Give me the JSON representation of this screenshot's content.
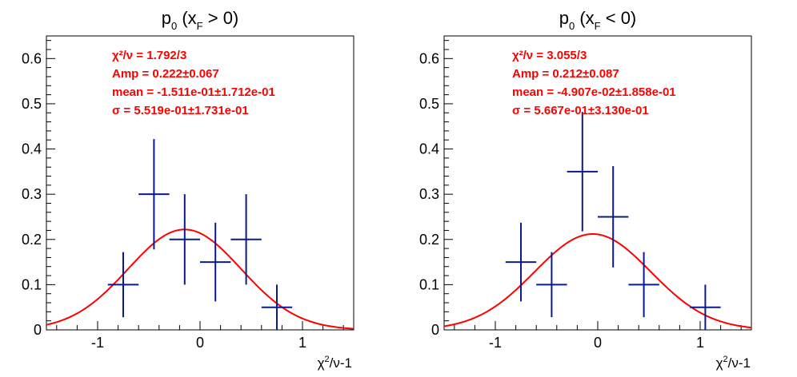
{
  "colors": {
    "data": "#0b1b8f",
    "fit": "#ff0000",
    "frame": "#000000"
  },
  "chart_data": [
    {
      "type": "scatter",
      "title": {
        "main": "p",
        "sub0": "0",
        "paren_open": " (x",
        "sub1": "F",
        "condition": " > 0)"
      },
      "xlabel": {
        "prefix": "χ",
        "sup": "2",
        "suffix": "/ν-1"
      },
      "ylabel": "",
      "xlim": [
        -1.5,
        1.5
      ],
      "ylim": [
        0,
        0.65
      ],
      "xticks": [
        -1,
        0,
        1
      ],
      "xtick_labels": [
        "-1",
        "0",
        "1"
      ],
      "yticks": [
        0,
        0.1,
        0.2,
        0.3,
        0.4,
        0.5,
        0.6
      ],
      "ytick_labels": [
        "0",
        "0.1",
        "0.2",
        "0.3",
        "0.4",
        "0.5",
        "0.6"
      ],
      "points": [
        {
          "x": -0.75,
          "xerr": 0.15,
          "y": 0.1,
          "yerr": 0.072
        },
        {
          "x": -0.45,
          "xerr": 0.15,
          "y": 0.3,
          "yerr": 0.122
        },
        {
          "x": -0.15,
          "xerr": 0.15,
          "y": 0.2,
          "yerr": 0.1
        },
        {
          "x": 0.15,
          "xerr": 0.15,
          "y": 0.15,
          "yerr": 0.087
        },
        {
          "x": 0.45,
          "xerr": 0.15,
          "y": 0.2,
          "yerr": 0.1
        },
        {
          "x": 0.75,
          "xerr": 0.15,
          "y": 0.05,
          "yerr": 0.05
        }
      ],
      "fit": {
        "function": "gaussian",
        "amp": 0.222,
        "mean": -0.1511,
        "sigma": 0.5519
      },
      "stats": [
        "χ²/ν = 1.792/3",
        "Amp = 0.222±0.067",
        "mean = -1.511e-01±1.712e-01",
        "σ = 5.519e-01±1.731e-01"
      ]
    },
    {
      "type": "scatter",
      "title": {
        "main": "p",
        "sub0": "0",
        "paren_open": " (x",
        "sub1": "F",
        "condition": " < 0)"
      },
      "xlabel": {
        "prefix": "χ",
        "sup": "2",
        "suffix": "/ν-1"
      },
      "ylabel": "",
      "xlim": [
        -1.5,
        1.5
      ],
      "ylim": [
        0,
        0.65
      ],
      "xticks": [
        -1,
        0,
        1
      ],
      "xtick_labels": [
        "-1",
        "0",
        "1"
      ],
      "yticks": [
        0,
        0.1,
        0.2,
        0.3,
        0.4,
        0.5,
        0.6
      ],
      "ytick_labels": [
        "0",
        "0.1",
        "0.2",
        "0.3",
        "0.4",
        "0.5",
        "0.6"
      ],
      "points": [
        {
          "x": -0.75,
          "xerr": 0.15,
          "y": 0.15,
          "yerr": 0.087
        },
        {
          "x": -0.45,
          "xerr": 0.15,
          "y": 0.1,
          "yerr": 0.072
        },
        {
          "x": -0.15,
          "xerr": 0.15,
          "y": 0.35,
          "yerr": 0.132
        },
        {
          "x": 0.15,
          "xerr": 0.15,
          "y": 0.25,
          "yerr": 0.112
        },
        {
          "x": 0.45,
          "xerr": 0.15,
          "y": 0.1,
          "yerr": 0.072
        },
        {
          "x": 1.05,
          "xerr": 0.15,
          "y": 0.05,
          "yerr": 0.05
        }
      ],
      "fit": {
        "function": "gaussian",
        "amp": 0.212,
        "mean": -0.04907,
        "sigma": 0.5667
      },
      "stats": [
        "χ²/ν = 3.055/3",
        "Amp = 0.212±0.087",
        "mean = -4.907e-02±1.858e-01",
        "σ = 5.667e-01±3.130e-01"
      ]
    }
  ]
}
